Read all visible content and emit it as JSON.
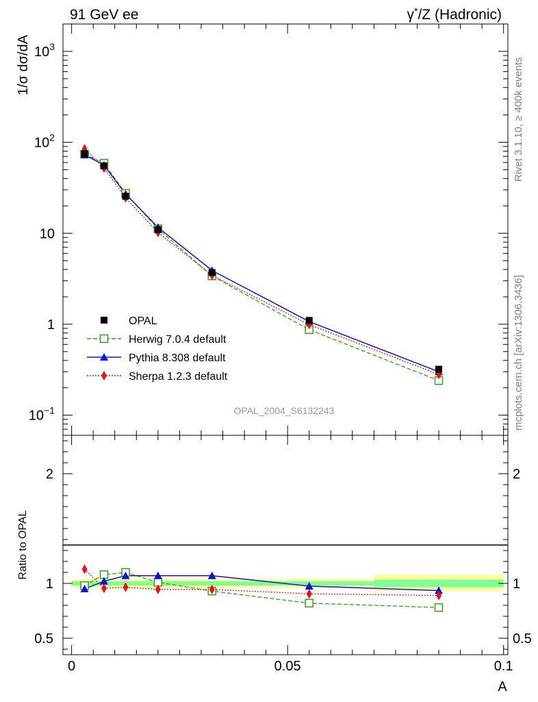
{
  "header": {
    "left": "91 GeV ee",
    "right_sym": "γ",
    "right_sup": "*",
    "right_rest": "/Z (Hadronic)"
  },
  "side_text": {
    "top": "Rivet 3.1.10, ≥ 400k events",
    "bottom": "mcplots.cern.ch [arXiv:1306.3436]"
  },
  "analysis_tag": "OPAL_2004_S6132243",
  "colors": {
    "data": "#000000",
    "herwig": "#3a9a1a",
    "pythia": "#1010dd",
    "sherpa": "#ee1111",
    "band_outer": "#ffff99",
    "band_inner": "#80ff99"
  },
  "chart_data": [
    {
      "type": "line",
      "ylabel": "1/σ dσ/dA",
      "yscale": "log",
      "ylim": [
        0.06,
        2000
      ],
      "y_ticks": [
        {
          "value": 1000,
          "base": "10",
          "exp": "3"
        },
        {
          "value": 100,
          "base": "10",
          "exp": "2"
        },
        {
          "value": 10,
          "base": "10",
          "exp": ""
        },
        {
          "value": 1,
          "base": "1",
          "exp": ""
        },
        {
          "value": 0.1,
          "base": "10",
          "exp": "−1"
        }
      ],
      "xlim": [
        -0.002,
        0.101
      ],
      "legend_position": "bottom-left",
      "series": [
        {
          "name": "OPAL",
          "key": "data",
          "marker": "filled-square",
          "line": "none",
          "x": [
            0.003,
            0.0075,
            0.0125,
            0.02,
            0.0325,
            0.055,
            0.085
          ],
          "y": [
            75,
            55,
            25.5,
            11,
            3.7,
            1.1,
            0.32
          ]
        },
        {
          "name": "Herwig 7.0.4 default",
          "key": "herwig",
          "marker": "open-square",
          "line": "dashed",
          "x": [
            0.003,
            0.0075,
            0.0125,
            0.02,
            0.0325,
            0.055,
            0.085
          ],
          "y": [
            74,
            59,
            27.5,
            11.2,
            3.4,
            0.87,
            0.24
          ]
        },
        {
          "name": "Pythia 8.308 default",
          "key": "pythia",
          "marker": "filled-triangle",
          "line": "solid",
          "x": [
            0.003,
            0.0075,
            0.0125,
            0.02,
            0.0325,
            0.055,
            0.085
          ],
          "y": [
            73,
            56,
            27,
            11.6,
            3.9,
            1.07,
            0.3
          ]
        },
        {
          "name": "Sherpa 1.2.3 default",
          "key": "sherpa",
          "marker": "filled-diamond",
          "line": "dotted",
          "x": [
            0.003,
            0.0075,
            0.0125,
            0.02,
            0.0325,
            0.055,
            0.085
          ],
          "y": [
            85,
            52,
            24.5,
            10.2,
            3.45,
            0.99,
            0.28
          ]
        }
      ]
    },
    {
      "type": "line",
      "xlabel": "A",
      "ylabel": "Ratio to OPAL",
      "ylim": [
        0.35,
        2.35
      ],
      "y_ticks": [
        {
          "value": 2,
          "label": "2"
        },
        {
          "value": 1,
          "label": "1"
        },
        {
          "value": 0.5,
          "label": "0.5"
        }
      ],
      "xlim": [
        -0.002,
        0.101
      ],
      "x_ticks": [
        {
          "value": 0,
          "label": "0"
        },
        {
          "value": 0.05,
          "label": "0.05"
        },
        {
          "value": 0.1,
          "label": "0.1"
        }
      ],
      "uncertainty_bands": [
        {
          "x0": 0.0,
          "x1": 0.07,
          "outer": [
            0.96,
            1.04
          ],
          "inner": [
            0.98,
            1.02
          ]
        },
        {
          "x0": 0.07,
          "x1": 0.1,
          "outer": [
            0.93,
            1.08
          ],
          "inner": [
            0.965,
            1.035
          ]
        }
      ],
      "series": [
        {
          "name": "Herwig 7.0.4 default",
          "key": "herwig",
          "x": [
            0.003,
            0.0075,
            0.0125,
            0.02,
            0.0325,
            0.055,
            0.085
          ],
          "y": [
            0.98,
            1.08,
            1.1,
            1.01,
            0.93,
            0.82,
            0.78
          ]
        },
        {
          "name": "Pythia 8.308 default",
          "key": "pythia",
          "x": [
            0.003,
            0.0075,
            0.0125,
            0.02,
            0.0325,
            0.055,
            0.085
          ],
          "y": [
            0.95,
            1.02,
            1.07,
            1.07,
            1.07,
            0.975,
            0.935
          ]
        },
        {
          "name": "Sherpa 1.2.3 default",
          "key": "sherpa",
          "x": [
            0.003,
            0.0075,
            0.0125,
            0.02,
            0.0325,
            0.055,
            0.085
          ],
          "y": [
            1.13,
            0.955,
            0.965,
            0.945,
            0.945,
            0.905,
            0.89
          ]
        }
      ]
    }
  ]
}
